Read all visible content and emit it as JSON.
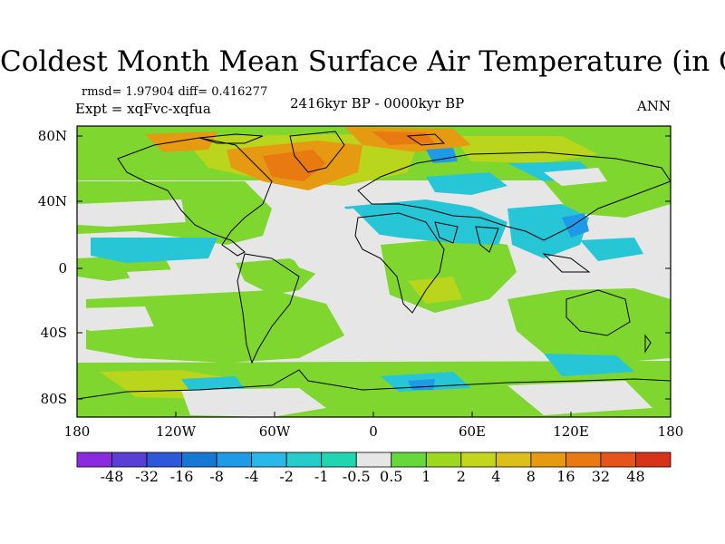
{
  "title": "Coldest Month Mean Surface Air Temperature (in C)",
  "stats": "rmsd= 1.97904 diff= 0.416277",
  "experiment": "Expt = xqFvc-xqfua",
  "period": "2416kyr BP - 0000kyr BP",
  "season": "ANN",
  "lat_labels": [
    "80N",
    "40N",
    "0",
    "40S",
    "80S"
  ],
  "lon_labels": [
    "180",
    "120W",
    "60W",
    "0",
    "60E",
    "120E",
    "180"
  ],
  "colorbar": {
    "labels": [
      "-48",
      "-32",
      "-16",
      "-8",
      "-4",
      "-2",
      "-1",
      "-0.5",
      "0.5",
      "1",
      "2",
      "4",
      "8",
      "16",
      "32",
      "48"
    ],
    "colors": [
      "#8a2be2",
      "#5a3fd6",
      "#2f57d9",
      "#1478d4",
      "#1e9ae6",
      "#2ab8e8",
      "#26cccc",
      "#1fd6b0",
      "#e6e6e6",
      "#66d93a",
      "#9ed81e",
      "#c4d51e",
      "#dcbf19",
      "#e69a12",
      "#e97a12",
      "#e6541a",
      "#d9321a"
    ]
  }
}
